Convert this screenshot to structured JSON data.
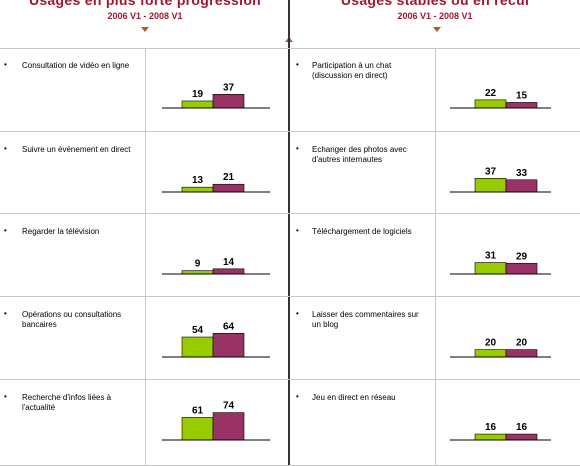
{
  "headers": {
    "left": {
      "title": "Usages en plus forte progression",
      "subtitle": "2006 V1 - 2008 V1"
    },
    "right": {
      "title": "Usages stables ou en recul",
      "subtitle": "2006 V1 - 2008 V1"
    }
  },
  "colors": {
    "series_2006": "#99cc00",
    "series_2008": "#993366",
    "title": "#a01830",
    "arrow": "#b05a2a"
  },
  "chart_data": {
    "type": "bar",
    "series_names": [
      "2006 V1",
      "2008 V1"
    ],
    "left": [
      {
        "label": "Consultation de vidéo en ligne",
        "values": [
          19,
          37
        ]
      },
      {
        "label": "Suivre un événement en direct",
        "values": [
          13,
          21
        ]
      },
      {
        "label": "Regarder la télévision",
        "values": [
          9,
          14
        ]
      },
      {
        "label": "Opérations ou consultations bancaires",
        "values": [
          54,
          64
        ]
      },
      {
        "label": "Recherche d'infos liées à l'actualité",
        "values": [
          61,
          74
        ]
      }
    ],
    "right": [
      {
        "label": "Participation à un chat (discussion en direct)",
        "values": [
          22,
          15
        ]
      },
      {
        "label": "Echanger des photos avec d'autres internautes",
        "values": [
          37,
          33
        ]
      },
      {
        "label": "Téléchargement de logiciels",
        "values": [
          31,
          29
        ]
      },
      {
        "label": "Laisser des commentaires sur un blog",
        "values": [
          20,
          20
        ]
      },
      {
        "label": "Jeu en direct en réseau",
        "values": [
          16,
          16
        ]
      }
    ]
  }
}
